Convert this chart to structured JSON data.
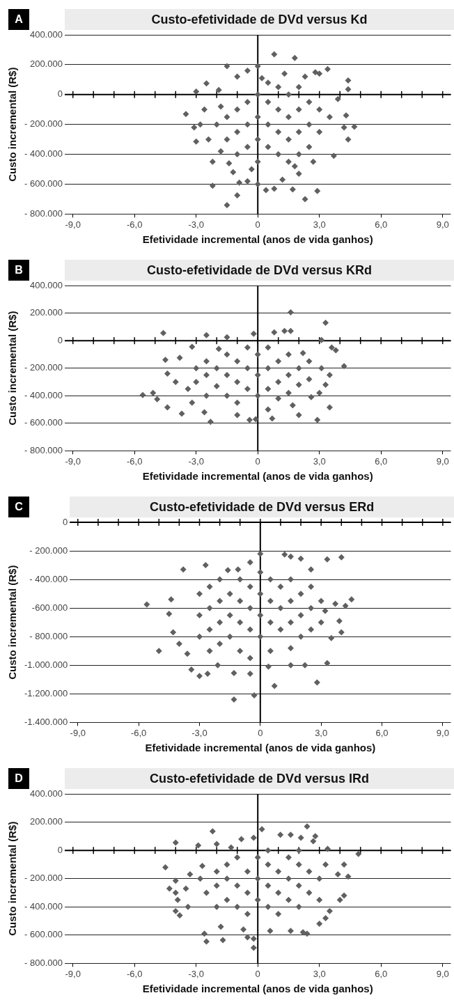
{
  "chart_data": [
    {
      "type": "scatter",
      "title": "Custo-efetividade de DVd versus Kd",
      "xlabel": "Efetividade incremental (anos de vida ganhos)",
      "ylabel": "Custo incremental (R$)",
      "annotations": [
        "A"
      ],
      "xlim": [
        -9.4,
        9.4
      ],
      "xticks": [
        {
          "value": -9,
          "label": "-9,0"
        },
        {
          "value": -8,
          "label": null
        },
        {
          "value": -7,
          "label": null
        },
        {
          "value": -6,
          "label": "-6,0"
        },
        {
          "value": -5,
          "label": null
        },
        {
          "value": -4,
          "label": null
        },
        {
          "value": -3,
          "label": "-3,0"
        },
        {
          "value": -2,
          "label": null
        },
        {
          "value": -1,
          "label": null
        },
        {
          "value": 0,
          "label": "0"
        },
        {
          "value": 1,
          "label": null
        },
        {
          "value": 2,
          "label": null
        },
        {
          "value": 3,
          "label": "3,0"
        },
        {
          "value": 4,
          "label": null
        },
        {
          "value": 5,
          "label": null
        },
        {
          "value": 6,
          "label": "6,0"
        },
        {
          "value": 7,
          "label": null
        },
        {
          "value": 8,
          "label": null
        },
        {
          "value": 9,
          "label": "9,0"
        }
      ],
      "ylim": [
        -800000,
        400000
      ],
      "yticks": [
        {
          "value": 400000,
          "label": "400.000"
        },
        {
          "value": 200000,
          "label": "200.000"
        },
        {
          "value": 0,
          "label": "0"
        },
        {
          "value": -200000,
          "label": "- 200.000"
        },
        {
          "value": -400000,
          "label": "- 400.000"
        },
        {
          "value": -600000,
          "label": "- 600.000"
        },
        {
          "value": -800000,
          "label": "- 800.000"
        }
      ],
      "grid": "y",
      "marker": "diamond",
      "legend": false,
      "ref_lines": [
        {
          "axis": "x",
          "value": 0,
          "color": "#000000"
        }
      ],
      "series": [
        {
          "color": "#606060",
          "x": [
            0.8,
            1.8,
            -1.5,
            0,
            -0.5,
            3.4,
            2.8,
            -2.5,
            -3,
            -1,
            4.4,
            4.4,
            -3.5,
            -3.1,
            -3,
            4.7,
            4.4,
            3.7,
            -2.2,
            -2.2,
            -1.5,
            -1,
            -0.9,
            0.4,
            0.8,
            1.7,
            2.3,
            2.9,
            0,
            2,
            -0.5,
            1.2,
            -1.4,
            4.2,
            4.3,
            3.9,
            1.3,
            0.2,
            2.3,
            3,
            -1.9,
            -2.6,
            -1.8,
            -2.4,
            -1.8,
            -2.8,
            -1,
            -1,
            -1,
            -0.5,
            -0.5,
            -0.5,
            -0.3,
            0,
            0,
            0,
            0,
            0.5,
            0.5,
            0.5,
            1,
            1,
            1,
            1,
            1.5,
            1.5,
            1.5,
            1.5,
            2,
            2,
            2,
            2,
            2.5,
            2.5,
            2.5,
            3,
            3,
            -1.5,
            -1.5,
            -2,
            3.5,
            0.5,
            -1.2,
            1.8,
            2.7
          ],
          "values": [
            270000,
            245000,
            190000,
            190000,
            160000,
            170000,
            150000,
            75000,
            20000,
            120000,
            95000,
            35000,
            -130000,
            -220000,
            -315000,
            -215000,
            -300000,
            -410000,
            -450000,
            -610000,
            -740000,
            -675000,
            -590000,
            -640000,
            -630000,
            -635000,
            -700000,
            -645000,
            -600000,
            -530000,
            -580000,
            -570000,
            -460000,
            -220000,
            -140000,
            -30000,
            140000,
            110000,
            120000,
            140000,
            30000,
            -100000,
            -80000,
            -300000,
            -380000,
            -200000,
            -100000,
            -250000,
            -400000,
            -50000,
            -200000,
            -350000,
            -500000,
            0,
            -150000,
            -300000,
            -450000,
            -50000,
            -200000,
            -350000,
            50000,
            -100000,
            -250000,
            -400000,
            0,
            -150000,
            -300000,
            -450000,
            50000,
            -100000,
            -250000,
            -400000,
            -50000,
            -200000,
            -350000,
            -100000,
            -250000,
            -150000,
            -300000,
            -200000,
            -150000,
            80000,
            -520000,
            -480000,
            -450000
          ]
        }
      ]
    },
    {
      "type": "scatter",
      "title": "Custo-efetividade de DVd versus KRd",
      "xlabel": "Efetividade incremental (anos de vida ganhos)",
      "ylabel": "Custo incremental (R$)",
      "annotations": [
        "B"
      ],
      "xlim": [
        -9.4,
        9.4
      ],
      "xticks": [
        {
          "value": -9,
          "label": "-9,0"
        },
        {
          "value": -8,
          "label": null
        },
        {
          "value": -7,
          "label": null
        },
        {
          "value": -6,
          "label": "-6,0"
        },
        {
          "value": -5,
          "label": null
        },
        {
          "value": -4,
          "label": null
        },
        {
          "value": -3,
          "label": "-3,0"
        },
        {
          "value": -2,
          "label": null
        },
        {
          "value": -1,
          "label": null
        },
        {
          "value": 0,
          "label": "0"
        },
        {
          "value": 1,
          "label": null
        },
        {
          "value": 2,
          "label": null
        },
        {
          "value": 3,
          "label": "3,0"
        },
        {
          "value": 4,
          "label": null
        },
        {
          "value": 5,
          "label": null
        },
        {
          "value": 6,
          "label": "6,0"
        },
        {
          "value": 7,
          "label": null
        },
        {
          "value": 8,
          "label": null
        },
        {
          "value": 9,
          "label": "9,0"
        }
      ],
      "ylim": [
        -800000,
        400000
      ],
      "yticks": [
        {
          "value": 400000,
          "label": "400.000"
        },
        {
          "value": 200000,
          "label": "200.000"
        },
        {
          "value": 0,
          "label": "0"
        },
        {
          "value": -200000,
          "label": "- 200.000"
        },
        {
          "value": -400000,
          "label": "- 400.000"
        },
        {
          "value": -600000,
          "label": "- 600.000"
        },
        {
          "value": -800000,
          "label": "- 800.000"
        }
      ],
      "grid": "y",
      "marker": "diamond",
      "legend": false,
      "ref_lines": [
        {
          "axis": "x",
          "value": 0,
          "color": "#000000"
        }
      ],
      "series": [
        {
          "color": "#606060",
          "x": [
            -4.6,
            -2.5,
            1.6,
            3.3,
            1.6,
            1.3,
            0.8,
            -0.2,
            -1.5,
            3.1,
            3.6,
            3.8,
            4.2,
            3.5,
            3.3,
            3.5,
            2.9,
            2,
            -5.6,
            -5.1,
            -4.9,
            -4.4,
            -4.4,
            -4.5,
            -3.7,
            -3.2,
            -3.8,
            -3.2,
            -2.3,
            -0.4,
            -0.1,
            0.7,
            1.7,
            -1,
            -2.6,
            -4,
            -3.4,
            2.6,
            3,
            2.2,
            -1.9,
            -3,
            -3,
            -2.5,
            -2.5,
            -2.5,
            -2,
            -2,
            -1.5,
            -1.5,
            -1.5,
            -1,
            -1,
            -1,
            -0.5,
            -0.5,
            -0.5,
            0,
            0,
            0,
            0.5,
            0.5,
            0.5,
            0.5,
            1,
            1,
            1,
            1.5,
            1.5,
            1.5,
            2,
            2,
            2.5,
            2.5,
            3.1
          ],
          "values": [
            55000,
            40000,
            205000,
            130000,
            70000,
            70000,
            60000,
            50000,
            25000,
            5000,
            -50000,
            -70000,
            -185000,
            -250000,
            -320000,
            -485000,
            -575000,
            -540000,
            -395000,
            -380000,
            -425000,
            -485000,
            -240000,
            -140000,
            -530000,
            -450000,
            -125000,
            -45000,
            -590000,
            -575000,
            -570000,
            -565000,
            -470000,
            -540000,
            -520000,
            -300000,
            -350000,
            -410000,
            -380000,
            -90000,
            -60000,
            -200000,
            -300000,
            -150000,
            -250000,
            -400000,
            -200000,
            -330000,
            -100000,
            -250000,
            -400000,
            -150000,
            -300000,
            -450000,
            -50000,
            -200000,
            -350000,
            -100000,
            -250000,
            -400000,
            -50000,
            -200000,
            -350000,
            -500000,
            -150000,
            -300000,
            -420000,
            -100000,
            -250000,
            -380000,
            -200000,
            -320000,
            -150000,
            -280000,
            -200000
          ]
        }
      ]
    },
    {
      "type": "scatter",
      "title": "Custo-efetividade de DVd versus ERd",
      "xlabel": "Efetividade incremental (anos de vida ganhos)",
      "ylabel": "Custo incremental (R$)",
      "annotations": [
        "C"
      ],
      "xlim": [
        -9.4,
        9.4
      ],
      "xticks": [
        {
          "value": -9,
          "label": "-9,0"
        },
        {
          "value": -8,
          "label": null
        },
        {
          "value": -7,
          "label": null
        },
        {
          "value": -6,
          "label": "-6,0"
        },
        {
          "value": -5,
          "label": null
        },
        {
          "value": -4,
          "label": null
        },
        {
          "value": -3,
          "label": "-3,0"
        },
        {
          "value": -2,
          "label": null
        },
        {
          "value": -1,
          "label": null
        },
        {
          "value": 0,
          "label": "0"
        },
        {
          "value": 1,
          "label": null
        },
        {
          "value": 2,
          "label": null
        },
        {
          "value": 3,
          "label": "3,0"
        },
        {
          "value": 4,
          "label": null
        },
        {
          "value": 5,
          "label": null
        },
        {
          "value": 6,
          "label": "6,0"
        },
        {
          "value": 7,
          "label": null
        },
        {
          "value": 8,
          "label": null
        },
        {
          "value": 9,
          "label": "9,0"
        }
      ],
      "ylim": [
        -1400000,
        0
      ],
      "yticks": [
        {
          "value": 0,
          "label": "0"
        },
        {
          "value": -200000,
          "label": "- 200.000"
        },
        {
          "value": -400000,
          "label": "- 400.000"
        },
        {
          "value": -600000,
          "label": "-600.000"
        },
        {
          "value": -800000,
          "label": "- 800.000"
        },
        {
          "value": -1000000,
          "label": "-1.000.000"
        },
        {
          "value": -1200000,
          "label": "-1.200.000"
        },
        {
          "value": -1400000,
          "label": "-1.400.000"
        }
      ],
      "grid": "y",
      "marker": "diamond",
      "legend": false,
      "ref_lines": [
        {
          "axis": "x",
          "value": 0,
          "color": "#000000"
        }
      ],
      "series": [
        {
          "color": "#606060",
          "x": [
            -5.6,
            -5,
            -4.4,
            -4.5,
            -4.3,
            -3.8,
            -4,
            -3.6,
            -3.4,
            -3,
            -2.6,
            -2.7,
            -1.3,
            -0.3,
            0.7,
            2.8,
            3.3,
            -1.3,
            -0.5,
            0,
            1.2,
            1.5,
            2,
            3.3,
            4,
            4.5,
            4.2,
            3.7,
            4,
            3.9,
            3.5,
            3.2,
            2.5,
            -0.5,
            -1.1,
            -1.6,
            0.4,
            1.5,
            2.2,
            -2.1,
            -3,
            -3,
            -3,
            -2.5,
            -2.5,
            -2.5,
            -2.5,
            -2,
            -2,
            -2,
            -2,
            -1.5,
            -1.5,
            -1.5,
            -1,
            -1,
            -1,
            -1,
            -0.5,
            -0.5,
            -0.5,
            -0.5,
            0,
            0,
            0,
            0,
            0.5,
            0.5,
            0.5,
            0.5,
            1,
            1,
            1,
            1.5,
            1.5,
            1.5,
            1.5,
            2,
            2,
            2,
            2.5,
            2.5,
            2.5,
            3,
            3
          ],
          "values": [
            -575000,
            -900000,
            -540000,
            -640000,
            -770000,
            -330000,
            -850000,
            -920000,
            -1030000,
            -1075000,
            -1060000,
            -300000,
            -1240000,
            -1210000,
            -1145000,
            -1120000,
            -985000,
            -1055000,
            -1060000,
            -220000,
            -225000,
            -240000,
            -255000,
            -260000,
            -245000,
            -540000,
            -585000,
            -570000,
            -770000,
            -690000,
            -810000,
            -620000,
            -330000,
            -280000,
            -330000,
            -335000,
            -1010000,
            -1000000,
            -1000000,
            -1000000,
            -500000,
            -650000,
            -800000,
            -450000,
            -600000,
            -750000,
            -900000,
            -400000,
            -550000,
            -700000,
            -850000,
            -500000,
            -650000,
            -800000,
            -400000,
            -550000,
            -700000,
            -900000,
            -450000,
            -600000,
            -750000,
            -950000,
            -350000,
            -500000,
            -650000,
            -800000,
            -400000,
            -550000,
            -700000,
            -900000,
            -450000,
            -600000,
            -750000,
            -400000,
            -550000,
            -700000,
            -880000,
            -500000,
            -650000,
            -800000,
            -450000,
            -600000,
            -750000,
            -550000,
            -700000
          ]
        }
      ]
    },
    {
      "type": "scatter",
      "title": "Custo-efetividade de DVd versus IRd",
      "xlabel": "Efetividade incremental (anos de vida ganhos)",
      "ylabel": "Custo incremental (R$)",
      "annotations": [
        "D"
      ],
      "xlim": [
        -9.4,
        9.4
      ],
      "xticks": [
        {
          "value": -9,
          "label": "-9,0"
        },
        {
          "value": -8,
          "label": null
        },
        {
          "value": -7,
          "label": null
        },
        {
          "value": -6,
          "label": "-6,0"
        },
        {
          "value": -5,
          "label": null
        },
        {
          "value": -4,
          "label": null
        },
        {
          "value": -3,
          "label": "-3,0"
        },
        {
          "value": -2,
          "label": null
        },
        {
          "value": -1,
          "label": null
        },
        {
          "value": 0,
          "label": "0"
        },
        {
          "value": 1,
          "label": null
        },
        {
          "value": 2,
          "label": null
        },
        {
          "value": 3,
          "label": "3,0"
        },
        {
          "value": 4,
          "label": null
        },
        {
          "value": 5,
          "label": null
        },
        {
          "value": 6,
          "label": "6,0"
        },
        {
          "value": 7,
          "label": null
        },
        {
          "value": 8,
          "label": null
        },
        {
          "value": 9,
          "label": "9,0"
        }
      ],
      "ylim": [
        -800000,
        400000
      ],
      "yticks": [
        {
          "value": 400000,
          "label": "400.000"
        },
        {
          "value": 200000,
          "label": "200.000"
        },
        {
          "value": 0,
          "label": "0"
        },
        {
          "value": -200000,
          "label": "- 200.000"
        },
        {
          "value": -400000,
          "label": "- 400.000"
        },
        {
          "value": -600000,
          "label": "- 600.000"
        },
        {
          "value": -800000,
          "label": "- 800.000"
        }
      ],
      "grid": "y",
      "marker": "diamond",
      "legend": false,
      "ref_lines": [
        {
          "axis": "x",
          "value": 0,
          "color": "#000000"
        }
      ],
      "series": [
        {
          "color": "#606060",
          "x": [
            -4,
            -2.2,
            -2.9,
            -2,
            -0.8,
            -0.2,
            0.2,
            1.1,
            1.6,
            2.1,
            2.4,
            2.8,
            2.7,
            3.4,
            4.9,
            -4.5,
            -4,
            -4.3,
            -4,
            -3.9,
            -4,
            -3.8,
            -3.5,
            -3.3,
            -3.4,
            -2.6,
            -2.5,
            -1.7,
            -1.8,
            -0.5,
            -0.2,
            -0.2,
            0.6,
            1.6,
            2.2,
            2.4,
            3,
            3.3,
            3.5,
            4.2,
            4,
            4.4,
            4.2,
            3.9,
            -2.7,
            -1.3,
            -0.7,
            -2.5,
            -2,
            -2,
            -2,
            -1.5,
            -1.5,
            -1.5,
            -1,
            -1,
            -1,
            -0.5,
            -0.5,
            -0.5,
            0,
            0,
            0,
            0.5,
            0.5,
            0.5,
            0.5,
            1,
            1,
            1,
            1.5,
            1.5,
            1.5,
            2,
            2,
            2,
            2,
            2.5,
            2.5,
            3,
            3,
            -2.8,
            3.3
          ],
          "values": [
            55000,
            135000,
            35000,
            45000,
            80000,
            90000,
            150000,
            110000,
            110000,
            90000,
            170000,
            100000,
            65000,
            10000,
            -25000,
            -120000,
            -215000,
            -270000,
            -300000,
            -350000,
            -430000,
            -460000,
            -270000,
            -170000,
            -400000,
            -590000,
            -645000,
            -635000,
            -540000,
            -615000,
            -625000,
            -690000,
            -570000,
            -570000,
            -580000,
            -590000,
            -520000,
            -480000,
            -430000,
            -320000,
            -350000,
            -185000,
            -100000,
            -170000,
            -110000,
            20000,
            -560000,
            -300000,
            -150000,
            -250000,
            -400000,
            -100000,
            -200000,
            -350000,
            -50000,
            -250000,
            -400000,
            -150000,
            -300000,
            -450000,
            -50000,
            -200000,
            -350000,
            0,
            -100000,
            -250000,
            -400000,
            -150000,
            -300000,
            -450000,
            -50000,
            -200000,
            -350000,
            0,
            -100000,
            -250000,
            -400000,
            -150000,
            -300000,
            -200000,
            -350000,
            -200000,
            -100000
          ]
        }
      ]
    }
  ]
}
